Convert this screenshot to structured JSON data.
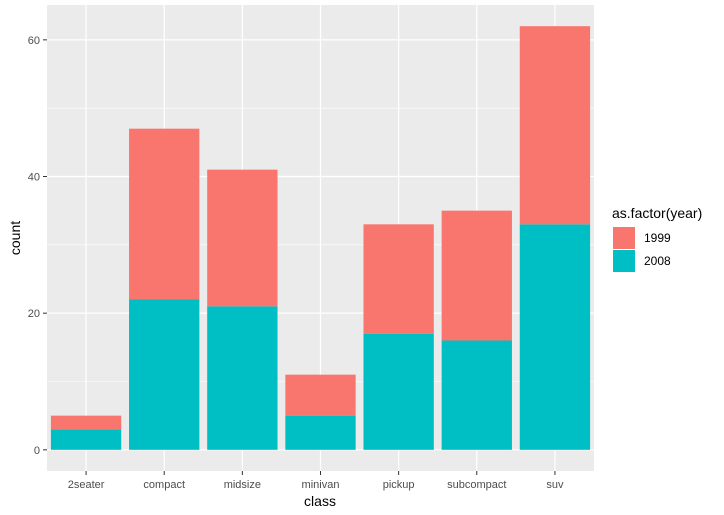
{
  "chart_data": {
    "type": "bar",
    "stacked": true,
    "categories": [
      "2seater",
      "compact",
      "midsize",
      "minivan",
      "pickup",
      "subcompact",
      "suv"
    ],
    "series": [
      {
        "name": "1999",
        "values": [
          2,
          25,
          20,
          6,
          16,
          19,
          29
        ],
        "color": "#F8766D"
      },
      {
        "name": "2008",
        "values": [
          3,
          22,
          21,
          5,
          17,
          16,
          33
        ],
        "color": "#00BFC4"
      }
    ],
    "xlabel": "class",
    "ylabel": "count",
    "ylim": [
      -3.1,
      65.1
    ],
    "yticks": [
      0,
      20,
      40,
      60
    ],
    "ytick_labels": [
      "0",
      "20",
      "40",
      "60"
    ],
    "legend": {
      "title": "as.factor(year)",
      "position": "right"
    },
    "grid": true,
    "panel_background": "#EBEBEB",
    "grid_color": "#FFFFFF"
  }
}
